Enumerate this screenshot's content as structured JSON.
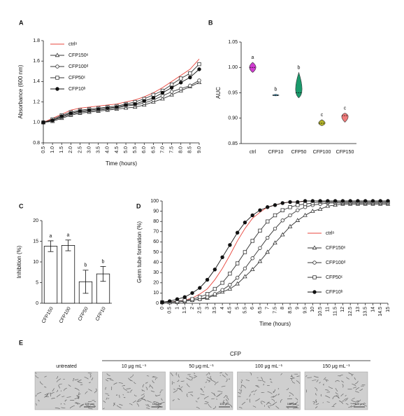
{
  "chart_data": [
    {
      "panel": "A",
      "type": "line",
      "y_label": "Absorbance (600 nm)",
      "x_label": "Time (hours)",
      "x": [
        0.5,
        1,
        1.5,
        2,
        2.5,
        3,
        3.5,
        4,
        4.5,
        5,
        5.5,
        6,
        6.5,
        7,
        7.5,
        8,
        8.5,
        9
      ],
      "xlim": [
        0.5,
        9
      ],
      "xticks": [
        0.5,
        {
          "value": 1,
          "label": "1.0"
        },
        1.5,
        {
          "value": 2,
          "label": "2.0"
        },
        2.5,
        {
          "value": 3,
          "label": "3.0"
        },
        3.5,
        {
          "value": 4,
          "label": "4.0"
        },
        4.5,
        {
          "value": 5,
          "label": "5.0"
        },
        5.5,
        {
          "value": 6,
          "label": "6.0"
        },
        6.5,
        {
          "value": 7,
          "label": "7.0"
        },
        7.5,
        {
          "value": 8,
          "label": "8.0"
        },
        8.5,
        {
          "value": 9,
          "label": "9.0"
        }
      ],
      "ylim": [
        0.8,
        1.8
      ],
      "yticks": [
        0.8,
        {
          "value": 1,
          "label": "1.0"
        },
        1.2,
        1.4,
        1.6,
        1.8
      ],
      "series": [
        {
          "name": "ctrlᵃ",
          "color": "#e8453c",
          "marker": "none",
          "values": [
            1.0,
            1.04,
            1.08,
            1.12,
            1.14,
            1.15,
            1.16,
            1.17,
            1.18,
            1.2,
            1.22,
            1.25,
            1.29,
            1.34,
            1.4,
            1.46,
            1.52,
            1.62
          ]
        },
        {
          "name": "CFP150ᵉ",
          "color": "#333333",
          "marker": "triangle",
          "values": [
            1.0,
            1.01,
            1.04,
            1.07,
            1.09,
            1.1,
            1.11,
            1.12,
            1.13,
            1.14,
            1.15,
            1.17,
            1.2,
            1.23,
            1.27,
            1.31,
            1.35,
            1.39
          ]
        },
        {
          "name": "CFP100ᵈ",
          "color": "#333333",
          "marker": "circle",
          "values": [
            1.0,
            1.02,
            1.05,
            1.08,
            1.1,
            1.11,
            1.12,
            1.13,
            1.14,
            1.16,
            1.17,
            1.19,
            1.22,
            1.26,
            1.3,
            1.33,
            1.36,
            1.41
          ]
        },
        {
          "name": "CFP50ᶜ",
          "color": "#333333",
          "marker": "square",
          "values": [
            1.0,
            1.03,
            1.07,
            1.1,
            1.12,
            1.13,
            1.14,
            1.15,
            1.16,
            1.18,
            1.2,
            1.23,
            1.27,
            1.31,
            1.37,
            1.43,
            1.48,
            1.57
          ]
        },
        {
          "name": "CFP10ᵇ",
          "color": "#111111",
          "marker": "dot",
          "values": [
            1.0,
            1.02,
            1.06,
            1.09,
            1.11,
            1.12,
            1.13,
            1.14,
            1.15,
            1.17,
            1.18,
            1.21,
            1.24,
            1.29,
            1.34,
            1.39,
            1.44,
            1.52
          ]
        }
      ]
    },
    {
      "panel": "B",
      "type": "violin",
      "y_label": "AUC",
      "categories": [
        "ctrl",
        "CFP10",
        "CFP50",
        "CFP100",
        "CFP150"
      ],
      "colors": [
        "#d13bd1",
        "#3aa8d8",
        "#1a9a6c",
        "#b5b52a",
        "#f07b7b"
      ],
      "min": [
        0.99,
        0.944,
        0.94,
        0.885,
        0.892
      ],
      "median": [
        1.0,
        0.945,
        0.95,
        0.89,
        0.905
      ],
      "max": [
        1.01,
        0.947,
        0.99,
        0.897,
        0.91
      ],
      "letters": [
        "a",
        "b",
        "b",
        "c",
        "c"
      ],
      "ylim": [
        0.85,
        1.05
      ],
      "yticks": [
        0.85,
        {
          "value": 0.9,
          "label": "0.90"
        },
        0.95,
        {
          "value": 1,
          "label": "1.00"
        },
        1.05
      ]
    },
    {
      "panel": "C",
      "type": "bar",
      "y_label": "Inhibition (%)",
      "categories": [
        "CFP150",
        "CFP100",
        "CFP50",
        "CFP10"
      ],
      "values": [
        13.8,
        14,
        5.2,
        7.1
      ],
      "errors": [
        1.3,
        1.3,
        2.8,
        1.8
      ],
      "letters": [
        "a",
        "a",
        "b",
        "b"
      ],
      "color": "#ffffff",
      "ylim": [
        0,
        20
      ],
      "yticks": [
        0,
        5,
        10,
        15,
        20
      ]
    },
    {
      "panel": "D",
      "type": "line",
      "y_label": "Germ tube formation (%)",
      "x_label": "Time (hours)",
      "x": [
        0,
        0.5,
        1,
        1.5,
        2,
        2.5,
        3,
        3.5,
        4,
        4.5,
        5,
        5.5,
        6,
        6.5,
        7,
        7.5,
        8,
        8.5,
        9,
        9.5,
        10,
        10.5,
        11,
        11.5,
        12,
        12.5,
        13,
        13.5,
        14,
        14.5,
        15
      ],
      "xlim": [
        0,
        15
      ],
      "xticks": [
        0,
        0.5,
        1,
        1.5,
        2,
        2.5,
        3,
        3.5,
        4,
        4.5,
        5,
        5.5,
        6,
        6.5,
        7,
        7.5,
        8,
        8.5,
        9,
        9.5,
        10,
        10.5,
        11,
        11.5,
        12,
        12.5,
        13,
        13.5,
        14,
        14.5,
        15
      ],
      "ylim": [
        0,
        100
      ],
      "yticks": [
        0,
        10,
        20,
        30,
        40,
        50,
        60,
        70,
        80,
        90,
        100
      ],
      "series": [
        {
          "name": "ctrlᵃ",
          "color": "#e8453c",
          "marker": "none",
          "values": [
            1,
            1,
            2,
            3,
            5,
            9,
            14,
            23,
            34,
            47,
            61,
            73,
            83,
            89,
            94,
            96,
            98,
            99,
            99,
            100,
            100,
            100,
            100,
            100,
            100,
            100,
            100,
            100,
            100,
            100,
            100
          ]
        },
        {
          "name": "CFP150ᵉ",
          "color": "#333333",
          "marker": "triangle",
          "values": [
            1,
            1,
            1,
            2,
            3,
            4,
            5,
            8,
            11,
            14,
            19,
            26,
            33,
            41,
            50,
            59,
            67,
            75,
            81,
            86,
            90,
            92,
            95,
            96,
            97,
            97,
            97,
            97,
            97,
            97,
            97
          ]
        },
        {
          "name": "CFP100ᵈ",
          "color": "#333333",
          "marker": "circle",
          "values": [
            1,
            1,
            1,
            2,
            3,
            4,
            6,
            9,
            13,
            18,
            25,
            34,
            44,
            54,
            64,
            73,
            81,
            86,
            91,
            94,
            96,
            97,
            98,
            98,
            98,
            98,
            98,
            98,
            98,
            98,
            98
          ]
        },
        {
          "name": "CFP50ᶜ",
          "color": "#333333",
          "marker": "square",
          "values": [
            1,
            1,
            2,
            3,
            4,
            6,
            9,
            14,
            20,
            29,
            39,
            50,
            61,
            71,
            80,
            86,
            91,
            94,
            96,
            97,
            98,
            99,
            99,
            99,
            99,
            99,
            99,
            99,
            99,
            99,
            99
          ]
        },
        {
          "name": "CFP10ᵇ",
          "color": "#111111",
          "marker": "dot",
          "values": [
            1,
            2,
            4,
            6,
            10,
            15,
            23,
            33,
            45,
            57,
            69,
            79,
            86,
            91,
            94,
            96,
            98,
            99,
            99,
            100,
            100,
            100,
            100,
            100,
            100,
            100,
            100,
            100,
            100,
            100,
            100
          ]
        }
      ]
    }
  ],
  "micrographs": {
    "panel": "E",
    "group_label": "CFP",
    "images": [
      {
        "label": "untreated",
        "scale_bar": "100 μm"
      },
      {
        "label": "10 μg mL⁻¹",
        "scale_bar": "100 μm"
      },
      {
        "label": "50 μg mL⁻¹",
        "scale_bar": "100 μm"
      },
      {
        "label": "100 μg mL⁻¹",
        "scale_bar": "100 μm"
      },
      {
        "label": "150 μg mL⁻¹",
        "scale_bar": "100 μm"
      }
    ]
  }
}
